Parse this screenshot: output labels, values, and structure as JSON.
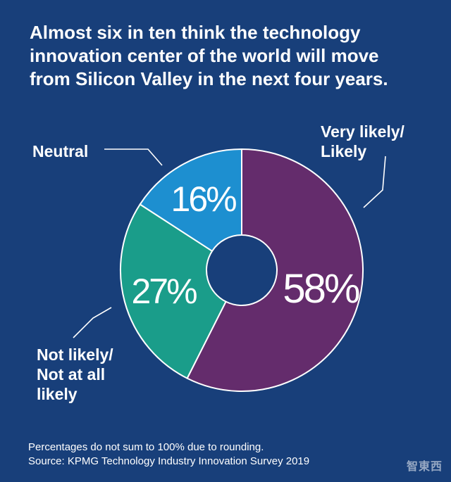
{
  "title_lines": [
    "Almost six in ten think the technology",
    "innovation center of the world will move",
    "from Silicon Valley in the next four years."
  ],
  "chart_data": {
    "type": "pie",
    "title": "Almost six in ten think the technology innovation center of the world will move from Silicon Valley in the next four years.",
    "donut": true,
    "start": "12 o'clock, clockwise",
    "slices": [
      {
        "name": "Very likely/ Likely",
        "value": 58,
        "label": "58%",
        "color": "#642c6c"
      },
      {
        "name": "Not likely/ Not at all likely",
        "value": 27,
        "label": "27%",
        "color": "#1a9d8a"
      },
      {
        "name": "Neutral",
        "value": 16,
        "label": "16%",
        "color": "#1d8fd0"
      }
    ]
  },
  "callouts": {
    "neutral": [
      "Neutral"
    ],
    "likely": [
      "Very likely/",
      "Likely"
    ],
    "not_likely": [
      "Not likely/",
      "Not at all",
      "likely"
    ]
  },
  "footer": {
    "note": "Percentages do not sum to 100% due to rounding.",
    "source": "Source: KPMG Technology Industry Innovation Survey 2019"
  },
  "watermark": "智東西"
}
